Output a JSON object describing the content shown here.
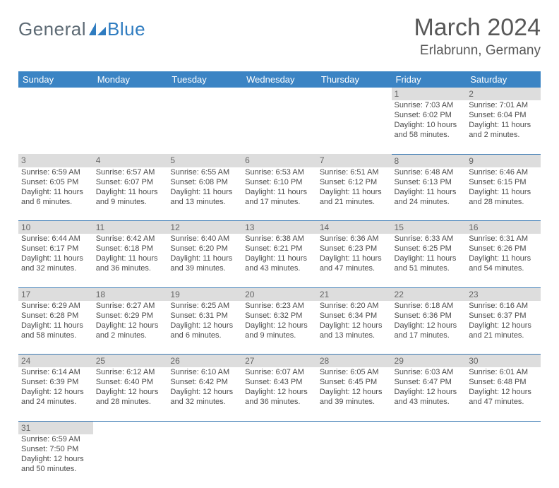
{
  "logo": {
    "text_a": "General",
    "text_b": "Blue",
    "sail_fill": "#2f7cc0"
  },
  "header": {
    "month": "March 2024",
    "location": "Erlabrunn, Germany"
  },
  "theme": {
    "header_bg": "#3b84c4",
    "header_fg": "#ffffff",
    "daynum_bg": "#dddddd",
    "cell_border": "#3b7ab4",
    "text_color": "#4b4b4b",
    "title_color": "#585858",
    "font_family": "Arial",
    "body_fontsize_pt": 8,
    "daynum_fontsize_pt": 9,
    "header_fontsize_pt": 10,
    "month_fontsize_pt": 26,
    "location_fontsize_pt": 14
  },
  "weekdays": [
    "Sunday",
    "Monday",
    "Tuesday",
    "Wednesday",
    "Thursday",
    "Friday",
    "Saturday"
  ],
  "weeks": [
    [
      null,
      null,
      null,
      null,
      null,
      {
        "n": "1",
        "sunrise": "Sunrise: 7:03 AM",
        "sunset": "Sunset: 6:02 PM",
        "daylight": "Daylight: 10 hours and 58 minutes."
      },
      {
        "n": "2",
        "sunrise": "Sunrise: 7:01 AM",
        "sunset": "Sunset: 6:04 PM",
        "daylight": "Daylight: 11 hours and 2 minutes."
      }
    ],
    [
      {
        "n": "3",
        "sunrise": "Sunrise: 6:59 AM",
        "sunset": "Sunset: 6:05 PM",
        "daylight": "Daylight: 11 hours and 6 minutes."
      },
      {
        "n": "4",
        "sunrise": "Sunrise: 6:57 AM",
        "sunset": "Sunset: 6:07 PM",
        "daylight": "Daylight: 11 hours and 9 minutes."
      },
      {
        "n": "5",
        "sunrise": "Sunrise: 6:55 AM",
        "sunset": "Sunset: 6:08 PM",
        "daylight": "Daylight: 11 hours and 13 minutes."
      },
      {
        "n": "6",
        "sunrise": "Sunrise: 6:53 AM",
        "sunset": "Sunset: 6:10 PM",
        "daylight": "Daylight: 11 hours and 17 minutes."
      },
      {
        "n": "7",
        "sunrise": "Sunrise: 6:51 AM",
        "sunset": "Sunset: 6:12 PM",
        "daylight": "Daylight: 11 hours and 21 minutes."
      },
      {
        "n": "8",
        "sunrise": "Sunrise: 6:48 AM",
        "sunset": "Sunset: 6:13 PM",
        "daylight": "Daylight: 11 hours and 24 minutes."
      },
      {
        "n": "9",
        "sunrise": "Sunrise: 6:46 AM",
        "sunset": "Sunset: 6:15 PM",
        "daylight": "Daylight: 11 hours and 28 minutes."
      }
    ],
    [
      {
        "n": "10",
        "sunrise": "Sunrise: 6:44 AM",
        "sunset": "Sunset: 6:17 PM",
        "daylight": "Daylight: 11 hours and 32 minutes."
      },
      {
        "n": "11",
        "sunrise": "Sunrise: 6:42 AM",
        "sunset": "Sunset: 6:18 PM",
        "daylight": "Daylight: 11 hours and 36 minutes."
      },
      {
        "n": "12",
        "sunrise": "Sunrise: 6:40 AM",
        "sunset": "Sunset: 6:20 PM",
        "daylight": "Daylight: 11 hours and 39 minutes."
      },
      {
        "n": "13",
        "sunrise": "Sunrise: 6:38 AM",
        "sunset": "Sunset: 6:21 PM",
        "daylight": "Daylight: 11 hours and 43 minutes."
      },
      {
        "n": "14",
        "sunrise": "Sunrise: 6:36 AM",
        "sunset": "Sunset: 6:23 PM",
        "daylight": "Daylight: 11 hours and 47 minutes."
      },
      {
        "n": "15",
        "sunrise": "Sunrise: 6:33 AM",
        "sunset": "Sunset: 6:25 PM",
        "daylight": "Daylight: 11 hours and 51 minutes."
      },
      {
        "n": "16",
        "sunrise": "Sunrise: 6:31 AM",
        "sunset": "Sunset: 6:26 PM",
        "daylight": "Daylight: 11 hours and 54 minutes."
      }
    ],
    [
      {
        "n": "17",
        "sunrise": "Sunrise: 6:29 AM",
        "sunset": "Sunset: 6:28 PM",
        "daylight": "Daylight: 11 hours and 58 minutes."
      },
      {
        "n": "18",
        "sunrise": "Sunrise: 6:27 AM",
        "sunset": "Sunset: 6:29 PM",
        "daylight": "Daylight: 12 hours and 2 minutes."
      },
      {
        "n": "19",
        "sunrise": "Sunrise: 6:25 AM",
        "sunset": "Sunset: 6:31 PM",
        "daylight": "Daylight: 12 hours and 6 minutes."
      },
      {
        "n": "20",
        "sunrise": "Sunrise: 6:23 AM",
        "sunset": "Sunset: 6:32 PM",
        "daylight": "Daylight: 12 hours and 9 minutes."
      },
      {
        "n": "21",
        "sunrise": "Sunrise: 6:20 AM",
        "sunset": "Sunset: 6:34 PM",
        "daylight": "Daylight: 12 hours and 13 minutes."
      },
      {
        "n": "22",
        "sunrise": "Sunrise: 6:18 AM",
        "sunset": "Sunset: 6:36 PM",
        "daylight": "Daylight: 12 hours and 17 minutes."
      },
      {
        "n": "23",
        "sunrise": "Sunrise: 6:16 AM",
        "sunset": "Sunset: 6:37 PM",
        "daylight": "Daylight: 12 hours and 21 minutes."
      }
    ],
    [
      {
        "n": "24",
        "sunrise": "Sunrise: 6:14 AM",
        "sunset": "Sunset: 6:39 PM",
        "daylight": "Daylight: 12 hours and 24 minutes."
      },
      {
        "n": "25",
        "sunrise": "Sunrise: 6:12 AM",
        "sunset": "Sunset: 6:40 PM",
        "daylight": "Daylight: 12 hours and 28 minutes."
      },
      {
        "n": "26",
        "sunrise": "Sunrise: 6:10 AM",
        "sunset": "Sunset: 6:42 PM",
        "daylight": "Daylight: 12 hours and 32 minutes."
      },
      {
        "n": "27",
        "sunrise": "Sunrise: 6:07 AM",
        "sunset": "Sunset: 6:43 PM",
        "daylight": "Daylight: 12 hours and 36 minutes."
      },
      {
        "n": "28",
        "sunrise": "Sunrise: 6:05 AM",
        "sunset": "Sunset: 6:45 PM",
        "daylight": "Daylight: 12 hours and 39 minutes."
      },
      {
        "n": "29",
        "sunrise": "Sunrise: 6:03 AM",
        "sunset": "Sunset: 6:47 PM",
        "daylight": "Daylight: 12 hours and 43 minutes."
      },
      {
        "n": "30",
        "sunrise": "Sunrise: 6:01 AM",
        "sunset": "Sunset: 6:48 PM",
        "daylight": "Daylight: 12 hours and 47 minutes."
      }
    ],
    [
      {
        "n": "31",
        "sunrise": "Sunrise: 6:59 AM",
        "sunset": "Sunset: 7:50 PM",
        "daylight": "Daylight: 12 hours and 50 minutes."
      },
      null,
      null,
      null,
      null,
      null,
      null
    ]
  ]
}
